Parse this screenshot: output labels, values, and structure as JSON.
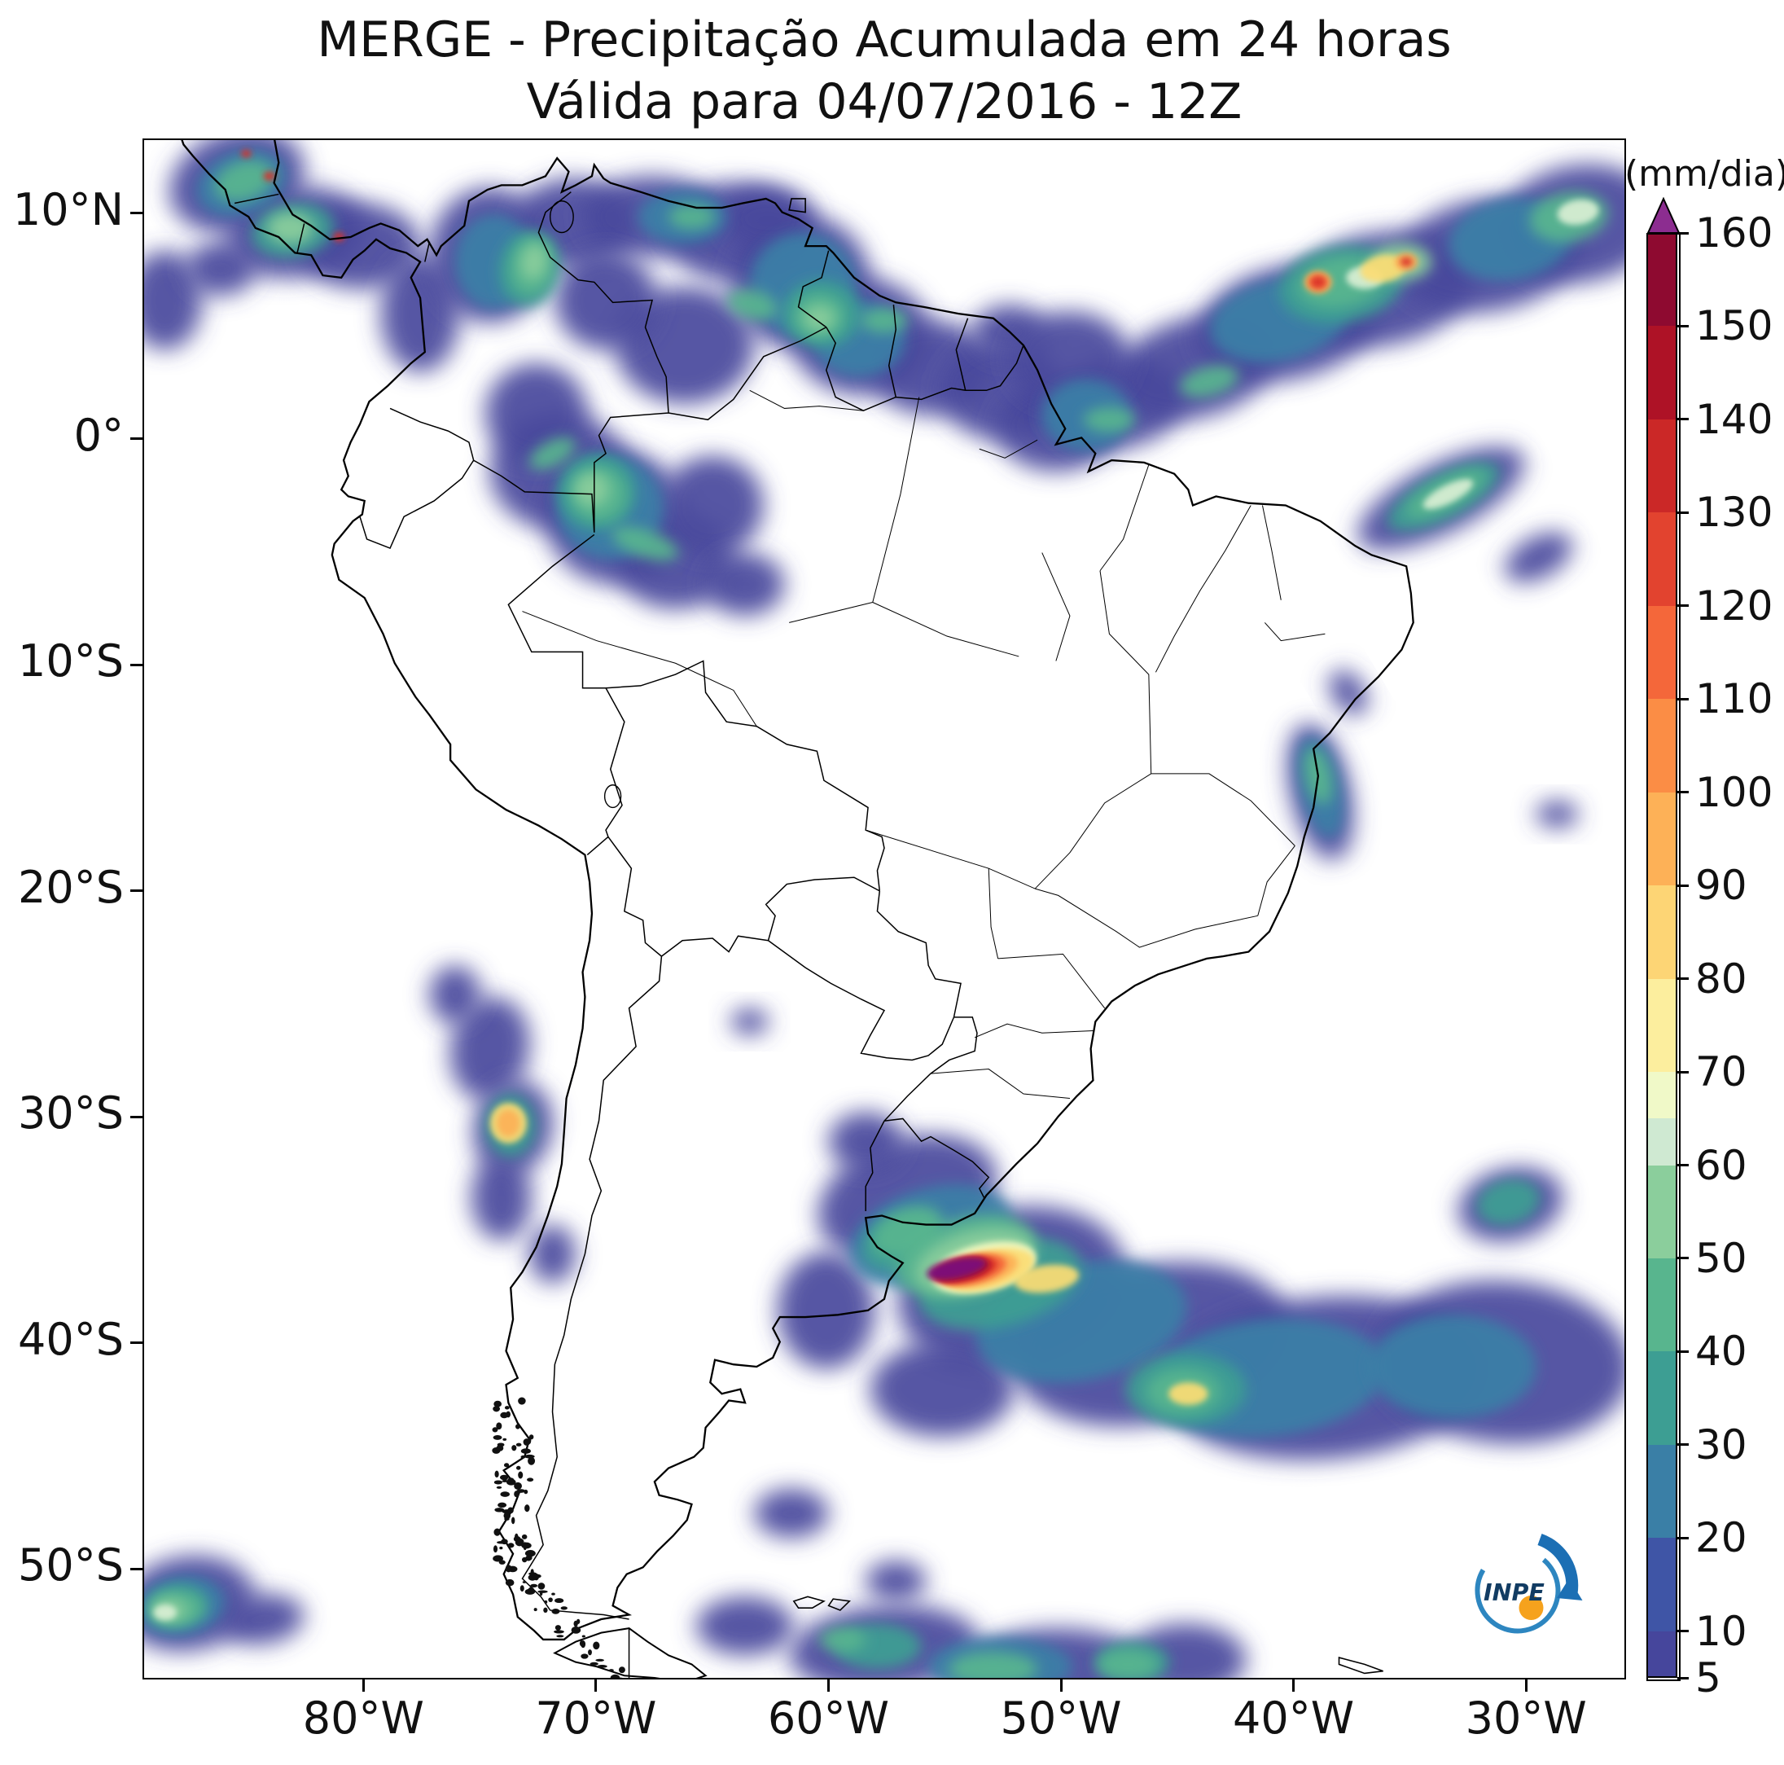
{
  "title": {
    "line1": "MERGE - Precipitação Acumulada em 24 horas",
    "line2": "Válida para 04/07/2016 - 12Z"
  },
  "axes": {
    "y_ticks": [
      {
        "label": "10°N",
        "lat": 10
      },
      {
        "label": "0°",
        "lat": 0
      },
      {
        "label": "10°S",
        "lat": -10
      },
      {
        "label": "20°S",
        "lat": -20
      },
      {
        "label": "30°S",
        "lat": -30
      },
      {
        "label": "40°S",
        "lat": -40
      },
      {
        "label": "50°S",
        "lat": -50
      }
    ],
    "x_ticks": [
      {
        "label": "80°W",
        "lon": -80
      },
      {
        "label": "70°W",
        "lon": -70
      },
      {
        "label": "60°W",
        "lon": -60
      },
      {
        "label": "50°W",
        "lon": -50
      },
      {
        "label": "40°W",
        "lon": -40
      },
      {
        "label": "30°W",
        "lon": -30
      }
    ]
  },
  "map_extent": {
    "lon_min": -89.5,
    "lon_max": -25.7,
    "lat_min": -54.9,
    "lat_max": 13.3
  },
  "colorbar": {
    "label": "(mm/dia)",
    "min": 5,
    "max": 160,
    "tick_values": [
      5,
      10,
      20,
      30,
      40,
      50,
      60,
      70,
      80,
      90,
      100,
      110,
      120,
      130,
      140,
      150,
      160
    ],
    "segments": [
      {
        "to": 10,
        "color": "#46469c"
      },
      {
        "to": 20,
        "color": "#3f55a6"
      },
      {
        "to": 30,
        "color": "#3a7fa6"
      },
      {
        "to": 40,
        "color": "#3d9e93"
      },
      {
        "to": 50,
        "color": "#58b58e"
      },
      {
        "to": 60,
        "color": "#8bce9c"
      },
      {
        "to": 65,
        "color": "#cfe9d2"
      },
      {
        "to": 70,
        "color": "#f0f9c8"
      },
      {
        "to": 80,
        "color": "#fcee9e"
      },
      {
        "to": 90,
        "color": "#fdd575"
      },
      {
        "to": 100,
        "color": "#fdb157"
      },
      {
        "to": 110,
        "color": "#fb8d45"
      },
      {
        "to": 120,
        "color": "#f4673a"
      },
      {
        "to": 130,
        "color": "#e2432f"
      },
      {
        "to": 140,
        "color": "#cb2827"
      },
      {
        "to": 150,
        "color": "#ae1226"
      },
      {
        "to": 160,
        "color": "#8e0a30"
      }
    ],
    "over_color": "#8c2d90"
  },
  "logo": {
    "text": "INPE",
    "swirl_color": "#2d86c0",
    "arrow_color": "#1c6fb4",
    "dot_color": "#f6a21d",
    "text_color": "#123c63"
  },
  "precip_palette": {
    "b1": "#46469c",
    "t1": "#3a7fa6",
    "t2": "#3d9e93",
    "g1": "#58b58e",
    "g2": "#8bce9c",
    "pale": "#d9efd4",
    "y1": "#f6fbc2",
    "y2": "#fcdc74",
    "o1": "#fdb157",
    "o2": "#f4673a",
    "r1": "#d93227",
    "r2": "#a50f26",
    "p": "#7a0c7e"
  },
  "precip_blobs": [
    [
      "b1",
      -85.5,
      11.5,
      3.0,
      2.2,
      -20,
      1
    ],
    [
      "b1",
      -83.0,
      9.2,
      3.0,
      2.0,
      -10,
      1
    ],
    [
      "b1",
      -80.2,
      8.6,
      2.6,
      1.9,
      0,
      1
    ],
    [
      "b1",
      -77.6,
      5.6,
      1.7,
      2.6,
      0,
      1
    ],
    [
      "b1",
      -74.6,
      8.2,
      2.6,
      3.0,
      0,
      1
    ],
    [
      "b1",
      -71.0,
      9.6,
      2.6,
      2.0,
      0,
      1
    ],
    [
      "b1",
      -67.6,
      9.9,
      3.0,
      1.8,
      0,
      1
    ],
    [
      "b1",
      -64.0,
      9.2,
      3.0,
      2.2,
      0,
      1
    ],
    [
      "b1",
      -61.2,
      7.0,
      3.0,
      3.0,
      0,
      1
    ],
    [
      "b1",
      -58.6,
      4.6,
      3.0,
      2.6,
      0,
      1
    ],
    [
      "b1",
      -55.6,
      3.2,
      2.6,
      2.1,
      0,
      1
    ],
    [
      "b1",
      -52.6,
      2.2,
      2.6,
      2.2,
      0,
      1
    ],
    [
      "b1",
      -52.2,
      4.8,
      1.6,
      1.2,
      0,
      1
    ],
    [
      "b1",
      -50.2,
      0.6,
      2.6,
      2.0,
      0,
      1
    ],
    [
      "b1",
      -47.6,
      1.6,
      3.0,
      2.0,
      -10,
      1
    ],
    [
      "b1",
      -44.2,
      3.2,
      3.5,
      2.2,
      -15,
      1
    ],
    [
      "b1",
      -40.2,
      5.2,
      4.0,
      2.5,
      -14,
      1
    ],
    [
      "b1",
      -36.2,
      6.7,
      4.0,
      2.5,
      -10,
      1
    ],
    [
      "b1",
      -31.6,
      8.2,
      4.0,
      2.5,
      -10,
      1
    ],
    [
      "b1",
      -27.6,
      9.6,
      3.5,
      2.6,
      -10,
      1
    ],
    [
      "b1",
      -66.2,
      4.2,
      3.0,
      2.6,
      0,
      1
    ],
    [
      "b1",
      -69.6,
      6.2,
      2.2,
      2.2,
      0,
      1
    ],
    [
      "b1",
      -62.6,
      9.8,
      2.0,
      1.4,
      0,
      1
    ],
    [
      "b1",
      -88.6,
      6.2,
      1.6,
      2.2,
      0,
      1
    ],
    [
      "b1",
      -86.2,
      7.6,
      1.5,
      1.2,
      0,
      1
    ],
    [
      "b1",
      -71.6,
      -1.4,
      3.0,
      2.6,
      0,
      1
    ],
    [
      "b1",
      -69.2,
      -3.4,
      3.0,
      3.0,
      0,
      1
    ],
    [
      "b1",
      -66.6,
      -5.4,
      2.6,
      2.1,
      0,
      1
    ],
    [
      "b1",
      -72.6,
      1.2,
      2.2,
      2.2,
      0,
      1
    ],
    [
      "b1",
      -65.0,
      -2.9,
      2.2,
      2.2,
      0,
      1
    ],
    [
      "b1",
      -63.6,
      -6.4,
      1.7,
      1.4,
      0,
      1
    ],
    [
      "b1",
      -49.6,
      3.6,
      2.6,
      2.1,
      0,
      1
    ],
    [
      "b1",
      -33.6,
      -2.6,
      4.0,
      1.5,
      -28,
      1
    ],
    [
      "b1",
      -29.4,
      -5.2,
      1.6,
      0.9,
      -30,
      1
    ],
    [
      "b1",
      -28.6,
      -16.6,
      0.9,
      0.6,
      0,
      1
    ],
    [
      "b1",
      -38.8,
      -15.6,
      1.3,
      3.1,
      -12,
      1
    ],
    [
      "b1",
      -37.6,
      -11.2,
      0.7,
      1.1,
      -30,
      1
    ],
    [
      "b1",
      -74.6,
      -27.0,
      1.7,
      2.3,
      10,
      1
    ],
    [
      "b1",
      -73.6,
      -30.5,
      1.7,
      2.1,
      15,
      1
    ],
    [
      "b1",
      -74.1,
      -33.6,
      1.3,
      1.9,
      0,
      1
    ],
    [
      "b1",
      -76.1,
      -24.6,
      1.1,
      1.3,
      0,
      1
    ],
    [
      "b1",
      -71.9,
      -36.1,
      1.0,
      1.3,
      0,
      1
    ],
    [
      "b1",
      -63.4,
      -25.8,
      0.8,
      0.6,
      0,
      1
    ],
    [
      "b1",
      -56.6,
      -33.6,
      4.0,
      2.6,
      -20,
      1
    ],
    [
      "b1",
      -52.1,
      -37.6,
      5.0,
      3.5,
      -15,
      1
    ],
    [
      "b1",
      -46.1,
      -40.1,
      6.0,
      3.5,
      -12,
      1
    ],
    [
      "b1",
      -38.6,
      -41.6,
      7.0,
      3.6,
      -5,
      1
    ],
    [
      "b1",
      -30.9,
      -40.9,
      5.5,
      3.6,
      5,
      1
    ],
    [
      "b1",
      -30.6,
      -33.9,
      2.3,
      1.6,
      -15,
      1
    ],
    [
      "b1",
      -58.4,
      -31.1,
      1.6,
      1.3,
      0,
      1
    ],
    [
      "b1",
      -60.1,
      -38.6,
      2.1,
      2.6,
      0,
      1
    ],
    [
      "b1",
      -55.1,
      -42.1,
      3.1,
      2.1,
      0,
      1
    ],
    [
      "b1",
      -87.6,
      -51.6,
      2.9,
      2.1,
      -10,
      1
    ],
    [
      "b1",
      -84.4,
      -52.3,
      1.8,
      1.1,
      -8,
      1
    ],
    [
      "b1",
      -57.6,
      -53.6,
      4.1,
      1.9,
      -5,
      1
    ],
    [
      "b1",
      -50.1,
      -54.6,
      4.1,
      1.9,
      0,
      1
    ],
    [
      "b1",
      -44.6,
      -54.1,
      2.6,
      1.6,
      0,
      1
    ],
    [
      "b1",
      -61.6,
      -47.6,
      1.6,
      1.1,
      0,
      1
    ],
    [
      "b1",
      -57.1,
      -50.6,
      1.3,
      0.9,
      0,
      1
    ],
    [
      "b1",
      -63.6,
      -52.6,
      2.1,
      1.3,
      0,
      1
    ],
    [
      "t1",
      -85.3,
      11.4,
      2.0,
      1.4,
      -20,
      2
    ],
    [
      "t1",
      -74.4,
      7.9,
      1.7,
      2.1,
      0,
      2
    ],
    [
      "t1",
      -66.3,
      9.9,
      1.9,
      1.2,
      0,
      2
    ],
    [
      "t1",
      -61.1,
      6.9,
      2.3,
      2.3,
      0,
      2
    ],
    [
      "t1",
      -58.7,
      4.5,
      2.0,
      1.7,
      0,
      2
    ],
    [
      "t1",
      -69.4,
      -3.0,
      2.3,
      2.3,
      0,
      2
    ],
    [
      "t1",
      -48.9,
      1.1,
      1.9,
      1.6,
      0,
      2
    ],
    [
      "t1",
      -40.6,
      5.3,
      3.0,
      1.8,
      -12,
      2
    ],
    [
      "t1",
      -30.6,
      8.9,
      2.7,
      1.8,
      -10,
      2
    ],
    [
      "t1",
      -38.8,
      -15.4,
      0.9,
      2.3,
      -12,
      2
    ],
    [
      "t1",
      -55.6,
      -35.3,
      3.6,
      2.1,
      -18,
      2
    ],
    [
      "t1",
      -49.1,
      -39.1,
      4.6,
      2.6,
      -12,
      2
    ],
    [
      "t1",
      -41.1,
      -41.6,
      5.1,
      2.6,
      -6,
      2
    ],
    [
      "t1",
      -33.1,
      -41.1,
      3.6,
      2.3,
      0,
      2
    ],
    [
      "t1",
      -52.6,
      -54.4,
      3.1,
      1.3,
      0,
      2
    ],
    [
      "t1",
      -87.9,
      -51.7,
      1.9,
      1.3,
      -10,
      2
    ],
    [
      "t2",
      -83.1,
      9.3,
      1.8,
      1.2,
      -10,
      2
    ],
    [
      "t2",
      -72.9,
      7.6,
      1.3,
      1.7,
      10,
      2
    ],
    [
      "t2",
      -60.3,
      5.6,
      1.7,
      1.5,
      0,
      2
    ],
    [
      "t2",
      -70.0,
      -2.3,
      1.7,
      1.7,
      0,
      2
    ],
    [
      "t2",
      -37.9,
      6.9,
      2.7,
      1.7,
      -10,
      2
    ],
    [
      "t2",
      -33.5,
      -2.5,
      2.7,
      1.0,
      -28,
      2
    ],
    [
      "t2",
      -73.7,
      -30.4,
      1.1,
      1.4,
      0,
      2
    ],
    [
      "t2",
      -52.6,
      -37.4,
      3.6,
      1.9,
      -15,
      2
    ],
    [
      "t2",
      -56.9,
      -35.6,
      1.7,
      1.2,
      -20,
      2
    ],
    [
      "t2",
      -44.6,
      -42.1,
      2.6,
      1.6,
      0,
      2
    ],
    [
      "t2",
      -30.7,
      -33.8,
      1.4,
      1.0,
      -15,
      2
    ],
    [
      "t2",
      -88.1,
      -51.7,
      1.3,
      0.9,
      -10,
      2
    ],
    [
      "t2",
      -57.9,
      -53.5,
      1.9,
      1.0,
      0,
      2
    ],
    [
      "t2",
      -46.9,
      -54.2,
      1.6,
      0.9,
      0,
      2
    ],
    [
      "g1",
      -85.2,
      11.5,
      1.3,
      0.85,
      -20,
      2
    ],
    [
      "g1",
      -72.8,
      7.7,
      0.9,
      1.3,
      10,
      2
    ],
    [
      "g1",
      -60.4,
      5.5,
      1.1,
      1.0,
      0,
      2
    ],
    [
      "g1",
      -69.9,
      -2.4,
      1.2,
      1.2,
      0,
      2
    ],
    [
      "g1",
      -67.9,
      -4.6,
      1.5,
      0.6,
      20,
      2
    ],
    [
      "g1",
      -71.9,
      -0.6,
      1.1,
      0.55,
      -30,
      2
    ],
    [
      "g1",
      -65.9,
      9.9,
      1.0,
      0.55,
      0,
      2
    ],
    [
      "g1",
      -63.3,
      6.0,
      1.1,
      0.65,
      15,
      2
    ],
    [
      "g1",
      -57.6,
      5.3,
      1.0,
      0.55,
      0,
      2
    ],
    [
      "g1",
      -43.6,
      2.6,
      1.3,
      0.65,
      -15,
      2
    ],
    [
      "g1",
      -47.9,
      0.9,
      1.1,
      0.55,
      0,
      2
    ],
    [
      "g1",
      -37.9,
      7.0,
      1.9,
      1.1,
      -10,
      2
    ],
    [
      "g1",
      -28.1,
      9.9,
      1.7,
      1.1,
      -10,
      2
    ],
    [
      "g1",
      -33.4,
      -2.4,
      1.9,
      0.65,
      -28,
      2
    ],
    [
      "g1",
      -38.9,
      -14.9,
      0.55,
      1.3,
      -12,
      2
    ],
    [
      "g1",
      -54.1,
      -36.2,
      3.1,
      1.7,
      -17,
      2
    ],
    [
      "g1",
      -56.6,
      -35.1,
      1.6,
      1.0,
      -25,
      2
    ],
    [
      "g1",
      -44.7,
      -42.2,
      1.6,
      1.0,
      0,
      2
    ],
    [
      "g1",
      -88.1,
      -51.8,
      1.2,
      0.75,
      0,
      2
    ],
    [
      "g1",
      -52.9,
      -54.5,
      1.9,
      0.75,
      0,
      2
    ],
    [
      "g1",
      -47.1,
      -54.3,
      1.3,
      0.65,
      0,
      2
    ],
    [
      "g1",
      -59.4,
      -53.2,
      1.0,
      0.55,
      0,
      2
    ],
    [
      "g2",
      -83.2,
      9.4,
      1.0,
      0.7,
      0,
      2
    ],
    [
      "g2",
      -72.7,
      7.9,
      0.55,
      0.8,
      10,
      2
    ],
    [
      "g2",
      -70.2,
      -2.2,
      0.75,
      0.75,
      0,
      2
    ],
    [
      "g2",
      -35.3,
      7.9,
      1.3,
      0.85,
      0,
      2
    ],
    [
      "g2",
      -60.4,
      5.4,
      0.65,
      0.55,
      0,
      2
    ],
    [
      "g2",
      -53.7,
      -36.4,
      2.6,
      1.3,
      -16,
      2
    ],
    [
      "g2",
      -88.4,
      -51.9,
      0.75,
      0.5,
      0,
      2
    ],
    [
      "pale",
      -33.3,
      -2.4,
      1.2,
      0.4,
      -28,
      3
    ],
    [
      "pale",
      -27.7,
      10.1,
      0.9,
      0.55,
      -10,
      3
    ],
    [
      "pale",
      -36.9,
      7.2,
      0.8,
      0.5,
      0,
      3
    ],
    [
      "pale",
      -88.6,
      -52.0,
      0.5,
      0.35,
      0,
      3
    ],
    [
      "y1",
      -53.3,
      -36.7,
      2.3,
      1.05,
      -14,
      3
    ],
    [
      "y2",
      -53.1,
      -36.8,
      2.0,
      0.85,
      -14,
      3
    ],
    [
      "y2",
      -50.6,
      -37.2,
      1.4,
      0.6,
      -8,
      3
    ],
    [
      "y2",
      -44.5,
      -42.3,
      0.85,
      0.5,
      0,
      3
    ],
    [
      "y2",
      -36.1,
      7.6,
      1.0,
      0.6,
      -10,
      3
    ],
    [
      "y2",
      -73.8,
      -30.3,
      0.8,
      0.9,
      0,
      3
    ],
    [
      "o1",
      -53.5,
      -36.8,
      1.7,
      0.7,
      -13,
      3
    ],
    [
      "o1",
      -73.8,
      -30.3,
      0.5,
      0.6,
      0,
      3
    ],
    [
      "o1",
      -38.9,
      7.0,
      0.6,
      0.5,
      0,
      3
    ],
    [
      "o1",
      -35.1,
      7.9,
      0.5,
      0.4,
      0,
      3
    ],
    [
      "o2",
      -53.8,
      -36.8,
      1.5,
      0.6,
      -13,
      3
    ],
    [
      "o2",
      -38.9,
      7.0,
      0.42,
      0.34,
      0,
      3
    ],
    [
      "r1",
      -54.1,
      -36.8,
      1.4,
      0.52,
      -12,
      3
    ],
    [
      "r1",
      -38.9,
      7.0,
      0.3,
      0.24,
      0,
      3
    ],
    [
      "r1",
      -35.1,
      7.9,
      0.26,
      0.2,
      0,
      3
    ],
    [
      "r1",
      -84.1,
      11.7,
      0.26,
      0.2,
      0,
      3
    ],
    [
      "r1",
      -85.1,
      12.7,
      0.22,
      0.18,
      0,
      3
    ],
    [
      "r1",
      -81.1,
      9.0,
      0.24,
      0.2,
      0,
      3
    ],
    [
      "r2",
      -54.3,
      -36.8,
      1.3,
      0.46,
      -12,
      3
    ],
    [
      "p",
      -54.5,
      -36.75,
      1.3,
      0.42,
      -12,
      3
    ]
  ]
}
